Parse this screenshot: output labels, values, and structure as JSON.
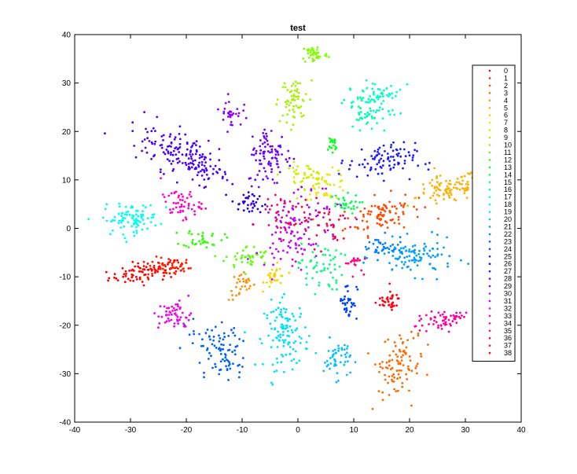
{
  "chart_data": {
    "type": "scatter",
    "title": "test",
    "xlabel": "",
    "ylabel": "",
    "xlim": [
      -40,
      40
    ],
    "ylim": [
      -40,
      40
    ],
    "x_ticks": [
      -40,
      -30,
      -20,
      -10,
      0,
      10,
      20,
      30,
      40
    ],
    "y_ticks": [
      -40,
      -30,
      -20,
      -10,
      0,
      10,
      20,
      30,
      40
    ],
    "grid": false,
    "legend_position": "right",
    "series": [
      {
        "name": "0",
        "color": "#ff0000",
        "cx": -27,
        "cy": -9,
        "sx": 3.5,
        "sy": 1.0,
        "rot": 10,
        "n": 85
      },
      {
        "name": "1",
        "color": "#ff2200",
        "cx": -23,
        "cy": -8,
        "sx": 2.0,
        "sy": 1.0,
        "rot": 0,
        "n": 45
      },
      {
        "name": "2",
        "color": "#ff4a00",
        "cx": 15,
        "cy": 3,
        "sx": 3.5,
        "sy": 1.8,
        "rot": 15,
        "n": 90
      },
      {
        "name": "3",
        "color": "#ff6a00",
        "cx": 18,
        "cy": -28,
        "sx": 2.0,
        "sy": 3.0,
        "rot": -15,
        "n": 95
      },
      {
        "name": "4",
        "color": "#ff9000",
        "cx": -10,
        "cy": -12,
        "sx": 1.2,
        "sy": 1.5,
        "rot": 0,
        "n": 30
      },
      {
        "name": "5",
        "color": "#ffb000",
        "cx": 27,
        "cy": 8,
        "sx": 3.0,
        "sy": 1.5,
        "rot": 15,
        "n": 90
      },
      {
        "name": "6",
        "color": "#ffd000",
        "cx": -4,
        "cy": -10,
        "sx": 1.0,
        "sy": 1.2,
        "rot": 0,
        "n": 30
      },
      {
        "name": "7",
        "color": "#e8e800",
        "cx": 5,
        "cy": 9,
        "sx": 2.0,
        "sy": 1.5,
        "rot": 0,
        "n": 45
      },
      {
        "name": "8",
        "color": "#c8f000",
        "cx": 1,
        "cy": 11,
        "sx": 2.0,
        "sy": 1.2,
        "rot": 0,
        "n": 40
      },
      {
        "name": "9",
        "color": "#a6f000",
        "cx": -1,
        "cy": 26,
        "sx": 1.3,
        "sy": 2.5,
        "rot": -10,
        "n": 60
      },
      {
        "name": "10",
        "color": "#80ff00",
        "cx": 3,
        "cy": 36,
        "sx": 1.2,
        "sy": 1.0,
        "rot": 0,
        "n": 45
      },
      {
        "name": "11",
        "color": "#5aff00",
        "cx": -9,
        "cy": -6,
        "sx": 2.0,
        "sy": 1.2,
        "rot": 0,
        "n": 40
      },
      {
        "name": "12",
        "color": "#30ff00",
        "cx": -17,
        "cy": -2,
        "sx": 1.8,
        "sy": 1.0,
        "rot": 0,
        "n": 35
      },
      {
        "name": "13",
        "color": "#10ff20",
        "cx": 6,
        "cy": 17,
        "sx": 0.6,
        "sy": 1.2,
        "rot": 0,
        "n": 20
      },
      {
        "name": "14",
        "color": "#00ff50",
        "cx": 8,
        "cy": 5,
        "sx": 1.5,
        "sy": 1.0,
        "rot": 0,
        "n": 30
      },
      {
        "name": "15",
        "color": "#00ff80",
        "cx": 4,
        "cy": -8,
        "sx": 2.0,
        "sy": 2.5,
        "rot": 0,
        "n": 55
      },
      {
        "name": "16",
        "color": "#00ffa8",
        "cx": 12,
        "cy": 24,
        "sx": 2.0,
        "sy": 2.5,
        "rot": -20,
        "n": 60
      },
      {
        "name": "17",
        "color": "#00ffd0",
        "cx": 15,
        "cy": 27,
        "sx": 2.0,
        "sy": 2.0,
        "rot": -20,
        "n": 50
      },
      {
        "name": "18",
        "color": "#00fff0",
        "cx": -30,
        "cy": 2,
        "sx": 2.5,
        "sy": 1.5,
        "rot": 5,
        "n": 90
      },
      {
        "name": "19",
        "color": "#00e0ff",
        "cx": -2,
        "cy": -22,
        "sx": 2.0,
        "sy": 3.5,
        "rot": 0,
        "n": 120
      },
      {
        "name": "20",
        "color": "#00c0ff",
        "cx": 7,
        "cy": -27,
        "sx": 1.2,
        "sy": 2.0,
        "rot": 0,
        "n": 50
      },
      {
        "name": "21",
        "color": "#00a0ff",
        "cx": 21,
        "cy": -6,
        "sx": 3.5,
        "sy": 1.8,
        "rot": 0,
        "n": 100
      },
      {
        "name": "22",
        "color": "#0080ff",
        "cx": 15,
        "cy": -4,
        "sx": 2.0,
        "sy": 1.2,
        "rot": 0,
        "n": 40
      },
      {
        "name": "23",
        "color": "#0060ff",
        "cx": -14,
        "cy": -25,
        "sx": 2.0,
        "sy": 3.0,
        "rot": 30,
        "n": 90
      },
      {
        "name": "24",
        "color": "#0040ff",
        "cx": 9,
        "cy": -15,
        "sx": 0.8,
        "sy": 2.0,
        "rot": 0,
        "n": 35
      },
      {
        "name": "25",
        "color": "#1a1aff",
        "cx": 15,
        "cy": 14,
        "sx": 3.0,
        "sy": 1.8,
        "rot": 0,
        "n": 90
      },
      {
        "name": "26",
        "color": "#2200e0",
        "cx": -9,
        "cy": 5,
        "sx": 1.5,
        "sy": 1.2,
        "rot": 0,
        "n": 35
      },
      {
        "name": "27",
        "color": "#4800ff",
        "cx": -20,
        "cy": 15,
        "sx": 4.5,
        "sy": 2.2,
        "rot": -30,
        "n": 170
      },
      {
        "name": "28",
        "color": "#6a00ff",
        "cx": -5,
        "cy": 15,
        "sx": 2.0,
        "sy": 3.0,
        "rot": 0,
        "n": 90
      },
      {
        "name": "29",
        "color": "#8c00ff",
        "cx": -12,
        "cy": 24,
        "sx": 1.0,
        "sy": 1.5,
        "rot": 0,
        "n": 30
      },
      {
        "name": "30",
        "color": "#b000ff",
        "cx": 0,
        "cy": 2,
        "sx": 4.0,
        "sy": 4.0,
        "rot": 0,
        "n": 80
      },
      {
        "name": "31",
        "color": "#d000ff",
        "cx": -2,
        "cy": -3,
        "sx": 2.5,
        "sy": 2.5,
        "rot": 0,
        "n": 40
      },
      {
        "name": "32",
        "color": "#f000f0",
        "cx": -22,
        "cy": -18,
        "sx": 1.5,
        "sy": 1.5,
        "rot": 0,
        "n": 55
      },
      {
        "name": "33",
        "color": "#ff00c8",
        "cx": -21,
        "cy": 5,
        "sx": 1.8,
        "sy": 1.5,
        "rot": 0,
        "n": 55
      },
      {
        "name": "34",
        "color": "#ff00a0",
        "cx": 26,
        "cy": -19,
        "sx": 2.5,
        "sy": 1.0,
        "rot": 15,
        "n": 60
      },
      {
        "name": "35",
        "color": "#ff0080",
        "cx": 10,
        "cy": -7,
        "sx": 0.8,
        "sy": 1.0,
        "rot": 0,
        "n": 20
      },
      {
        "name": "36",
        "color": "#ff0058",
        "cx": -3,
        "cy": 3,
        "sx": 2.5,
        "sy": 2.5,
        "rot": 0,
        "n": 35
      },
      {
        "name": "37",
        "color": "#ff0038",
        "cx": 5,
        "cy": 1,
        "sx": 2.5,
        "sy": 2.5,
        "rot": 0,
        "n": 30
      },
      {
        "name": "38",
        "color": "#ff0010",
        "cx": 16,
        "cy": -15,
        "sx": 1.2,
        "sy": 1.0,
        "rot": 0,
        "n": 35
      }
    ]
  }
}
